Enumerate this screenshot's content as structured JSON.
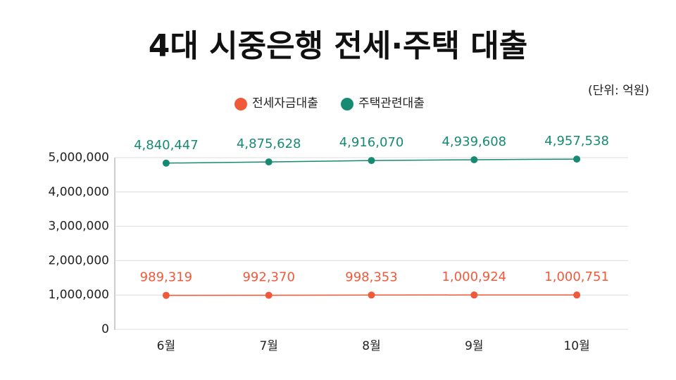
{
  "chart_data": {
    "type": "line",
    "title": "4대 시중은행 전세·주택 대출",
    "annotation": "(단위: 억원)",
    "categories": [
      "6월",
      "7월",
      "8월",
      "9월",
      "10월"
    ],
    "series": [
      {
        "name": "전세자금대출",
        "color": "#f0593a",
        "values": [
          989319,
          992370,
          998353,
          1000924,
          1000751
        ],
        "value_labels": [
          "989,319",
          "992,370",
          "998,353",
          "1,000,924",
          "1,000,751"
        ]
      },
      {
        "name": "주택관련대출",
        "color": "#178a72",
        "values": [
          4840447,
          4875628,
          4916070,
          4939608,
          4957538
        ],
        "value_labels": [
          "4,840,447",
          "4,875,628",
          "4,916,070",
          "4,939,608",
          "4,957,538"
        ]
      }
    ],
    "ylim": [
      0,
      5000000
    ],
    "yticks": [
      0,
      {
        "value": 1000000,
        "label": "1,000,000"
      },
      {
        "value": 2000000,
        "label": "2,000,000"
      },
      {
        "value": 3000000,
        "label": "3,000,000"
      },
      {
        "value": 4000000,
        "label": "4,000,000"
      },
      {
        "value": 5000000,
        "label": "5,000,000"
      }
    ],
    "grid": true
  }
}
